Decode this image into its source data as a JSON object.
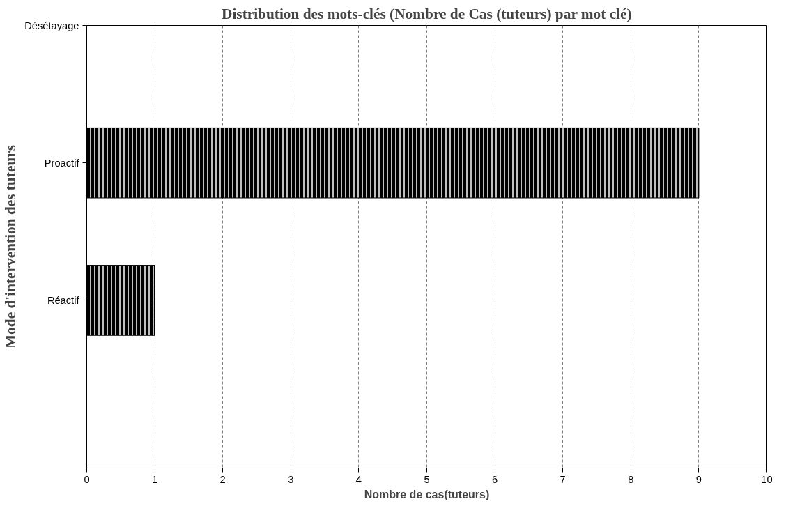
{
  "chart_data": {
    "type": "bar",
    "orientation": "horizontal",
    "title": "Distribution des mots-clés (Nombre de Cas (tuteurs) par mot clé)",
    "xlabel": "Nombre de cas(tuteurs)",
    "ylabel": "Mode d'intervention des tuteurs",
    "categories": [
      "Désétayage",
      "Proactif",
      "Réactif",
      null
    ],
    "values": [
      0,
      9,
      1,
      null
    ],
    "color": "#000000",
    "xlim": [
      0,
      10
    ],
    "xticks": [
      0,
      1,
      2,
      3,
      4,
      5,
      6,
      7,
      8,
      9,
      10
    ],
    "grid": "x"
  }
}
